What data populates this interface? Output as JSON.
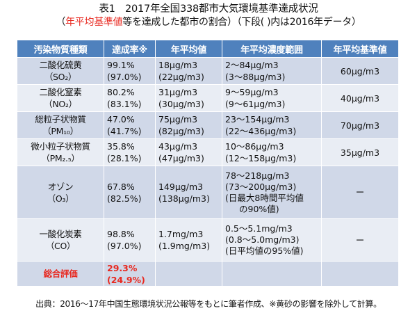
{
  "title": "表1　2017年全国338都市大気環境基準達成状況",
  "subtitle": {
    "open_paren": "（",
    "highlight": "年平均基準値",
    "rest": "等を達成した都市の割合）（下段( )内は2016年データ）"
  },
  "table": {
    "headers": [
      "汚染物質種類",
      "達成率※",
      "年平均値",
      "年平均濃度範囲",
      "年平均基準値"
    ],
    "rows": [
      {
        "name": "二酸化硫黄",
        "formula": "（SO₂）",
        "rate_2017": "99.1%",
        "rate_2016": "(97.0%)",
        "avg_2017": "18μg/m3",
        "avg_2016": "(22μg/m3)",
        "range_lines": [
          "2～84μg/m3",
          "(3～88μg/m3)"
        ],
        "standard": "60μg/m3"
      },
      {
        "name": "二酸化窒素",
        "formula": "（NO₂）",
        "rate_2017": "80.2%",
        "rate_2016": "(83.1%)",
        "avg_2017": "31μg/m3",
        "avg_2016": "(30μg/m3)",
        "range_lines": [
          "9～59μg/m3",
          "(9～61μg/m3)"
        ],
        "standard": "40μg/m3"
      },
      {
        "name": "総粒子状物質",
        "formula": "（PM₁₀）",
        "rate_2017": "47.0%",
        "rate_2016": "(41.7%)",
        "avg_2017": "75μg/m3",
        "avg_2016": "(82μg/m3)",
        "range_lines": [
          "23～154μg/m3",
          "(22～436μg/m3)"
        ],
        "standard": "70μg/m3"
      },
      {
        "name": "微小粒子状物質",
        "formula": "（PM₂.₅）",
        "rate_2017": "35.8%",
        "rate_2016": "(28.1%)",
        "avg_2017": "43μg/m3",
        "avg_2016": "(47μg/m3)",
        "range_lines": [
          "10～86μg/m3",
          "(12～158μg/m3)"
        ],
        "standard": "35μg/m3"
      },
      {
        "name": "オゾン",
        "formula": "（O₃）",
        "rate_2017": "67.8%",
        "rate_2016": "(82.5%)",
        "avg_2017": "149μg/m3",
        "avg_2016": "(138μg/m3)",
        "range_lines": [
          "78～218μg/m3",
          "(73～200μg/m3)",
          "(日最大8時間平均値",
          "の90%値)"
        ],
        "standard": "ー"
      },
      {
        "name": "一酸化炭素",
        "formula": "（CO）",
        "rate_2017": "98.8%",
        "rate_2016": "(97.0%)",
        "avg_2017": "1.7mg/m3",
        "avg_2016": "(1.9mg/m3)",
        "range_lines": [
          "0.5～5.1mg/m3",
          "(0.8～5.0mg/m3)",
          "(日平均値の95%値)"
        ],
        "standard": "ー"
      }
    ],
    "total": {
      "label": "総合評価",
      "rate_2017": "29.3%",
      "rate_2016": "(24.9%)"
    }
  },
  "source": "出典：2016～17年中国生態環境状況公報等をもとに筆者作成、※黄砂の影響を除外して計算。",
  "colors": {
    "header_bg": "#4f81bd",
    "row_dark": "#d0d8e8",
    "row_light": "#e9edf4",
    "accent_red": "#e8281f"
  }
}
